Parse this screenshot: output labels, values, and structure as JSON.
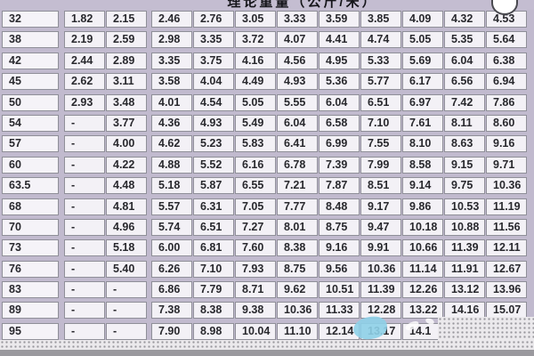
{
  "header": {
    "title": "理论重量（公斤/米）"
  },
  "table": {
    "rows": [
      {
        "label": "32",
        "values": [
          "1.82",
          "2.15",
          "2.46",
          "2.76",
          "3.05",
          "3.33",
          "3.59",
          "3.85",
          "4.09",
          "4.32",
          "4.53"
        ]
      },
      {
        "label": "38",
        "values": [
          "2.19",
          "2.59",
          "2.98",
          "3.35",
          "3.72",
          "4.07",
          "4.41",
          "4.74",
          "5.05",
          "5.35",
          "5.64"
        ]
      },
      {
        "label": "42",
        "values": [
          "2.44",
          "2.89",
          "3.35",
          "3.75",
          "4.16",
          "4.56",
          "4.95",
          "5.33",
          "5.69",
          "6.04",
          "6.38"
        ]
      },
      {
        "label": "45",
        "values": [
          "2.62",
          "3.11",
          "3.58",
          "4.04",
          "4.49",
          "4.93",
          "5.36",
          "5.77",
          "6.17",
          "6.56",
          "6.94"
        ]
      },
      {
        "label": "50",
        "values": [
          "2.93",
          "3.48",
          "4.01",
          "4.54",
          "5.05",
          "5.55",
          "6.04",
          "6.51",
          "6.97",
          "7.42",
          "7.86"
        ]
      },
      {
        "label": "54",
        "values": [
          "-",
          "3.77",
          "4.36",
          "4.93",
          "5.49",
          "6.04",
          "6.58",
          "7.10",
          "7.61",
          "8.11",
          "8.60"
        ]
      },
      {
        "label": "57",
        "values": [
          "-",
          "4.00",
          "4.62",
          "5.23",
          "5.83",
          "6.41",
          "6.99",
          "7.55",
          "8.10",
          "8.63",
          "9.16"
        ]
      },
      {
        "label": "60",
        "values": [
          "-",
          "4.22",
          "4.88",
          "5.52",
          "6.16",
          "6.78",
          "7.39",
          "7.99",
          "8.58",
          "9.15",
          "9.71"
        ]
      },
      {
        "label": "63.5",
        "values": [
          "-",
          "4.48",
          "5.18",
          "5.87",
          "6.55",
          "7.21",
          "7.87",
          "8.51",
          "9.14",
          "9.75",
          "10.36"
        ]
      },
      {
        "label": "68",
        "values": [
          "-",
          "4.81",
          "5.57",
          "6.31",
          "7.05",
          "7.77",
          "8.48",
          "9.17",
          "9.86",
          "10.53",
          "11.19"
        ]
      },
      {
        "label": "70",
        "values": [
          "-",
          "4.96",
          "5.74",
          "6.51",
          "7.27",
          "8.01",
          "8.75",
          "9.47",
          "10.18",
          "10.88",
          "11.56"
        ]
      },
      {
        "label": "73",
        "values": [
          "-",
          "5.18",
          "6.00",
          "6.81",
          "7.60",
          "8.38",
          "9.16",
          "9.91",
          "10.66",
          "11.39",
          "12.11"
        ]
      },
      {
        "label": "76",
        "values": [
          "-",
          "5.40",
          "6.26",
          "7.10",
          "7.93",
          "8.75",
          "9.56",
          "10.36",
          "11.14",
          "11.91",
          "12.67"
        ]
      },
      {
        "label": "83",
        "values": [
          "-",
          "-",
          "6.86",
          "7.79",
          "8.71",
          "9.62",
          "10.51",
          "11.39",
          "12.26",
          "13.12",
          "13.96"
        ]
      },
      {
        "label": "89",
        "values": [
          "-",
          "-",
          "7.38",
          "8.38",
          "9.38",
          "10.36",
          "11.33",
          "12.28",
          "13.22",
          "14.16",
          "15.07"
        ]
      },
      {
        "label": "95",
        "values": [
          "-",
          "-",
          "7.90",
          "8.98",
          "10.04",
          "11.10",
          "12.14",
          "13.17",
          "14.1",
          "",
          ""
        ]
      }
    ]
  },
  "colors": {
    "background_lavender": "#c1bace",
    "cell_background": "#f3f1f6",
    "cell_border": "#8f8f98",
    "text": "#28282d",
    "bottom_bar_gray": "#9a999e",
    "dither_background": "#ebe9ec",
    "dither_dot": "#96959b",
    "blob_blue": "#8ed0e8",
    "bubble_white": "#ffffff"
  }
}
